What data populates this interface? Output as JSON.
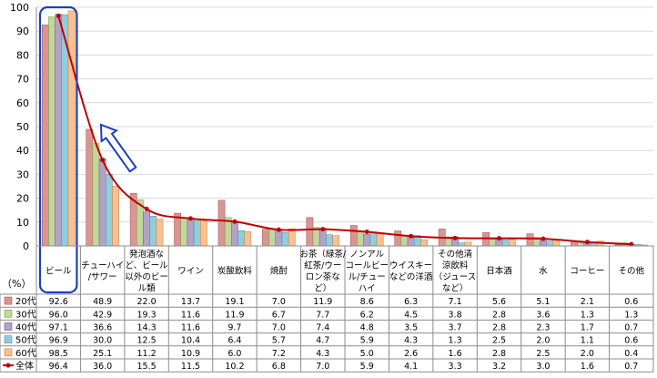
{
  "chart_data": {
    "type": "bar",
    "unit_label": "（%）",
    "ylim": [
      0,
      100
    ],
    "yticks": [
      0,
      10,
      20,
      30,
      40,
      50,
      60,
      70,
      80,
      90,
      100
    ],
    "grid": true,
    "legend_placement": "left-of-table",
    "categories": [
      [
        "ビール"
      ],
      [
        "チューハイ",
        "/サワー"
      ],
      [
        "発泡酒な",
        "ど、ビール",
        "以外のビー",
        "ル類"
      ],
      [
        "ワイン"
      ],
      [
        "炭酸飲料"
      ],
      [
        "焼酎"
      ],
      [
        "お茶（緑茶/",
        "紅茶/ウー",
        "ロン茶な",
        "ど）"
      ],
      [
        "ノンアル",
        "コールビー",
        "ル/チュー",
        "ハイ"
      ],
      [
        "ウイスキー",
        "などの洋酒"
      ],
      [
        "その他清",
        "涼飲料",
        "（ジュース",
        "など）"
      ],
      [
        "日本酒"
      ],
      [
        "水"
      ],
      [
        "コーヒー"
      ],
      [
        "その他"
      ]
    ],
    "series": [
      {
        "name": "20代",
        "color": "#d99594",
        "stroke": "#a05050",
        "values": [
          "92.6",
          "48.9",
          "22.0",
          "13.7",
          "19.1",
          "7.0",
          "11.9",
          "8.6",
          "6.3",
          "7.1",
          "5.6",
          "5.1",
          "2.1",
          "0.6"
        ]
      },
      {
        "name": "30代",
        "color": "#c3d69b",
        "stroke": "#7a9a40",
        "values": [
          "96.0",
          "42.9",
          "19.3",
          "11.6",
          "11.9",
          "6.7",
          "7.7",
          "6.2",
          "4.5",
          "3.8",
          "2.8",
          "3.6",
          "1.3",
          "1.3"
        ]
      },
      {
        "name": "40代",
        "color": "#b3a2c7",
        "stroke": "#6a5a8a",
        "values": [
          "97.1",
          "36.6",
          "14.3",
          "11.6",
          "9.7",
          "7.0",
          "7.4",
          "4.8",
          "3.5",
          "3.7",
          "2.8",
          "2.3",
          "1.7",
          "0.7"
        ]
      },
      {
        "name": "50代",
        "color": "#92cddc",
        "stroke": "#4a90a8",
        "values": [
          "96.9",
          "30.0",
          "12.5",
          "10.4",
          "6.4",
          "5.7",
          "4.7",
          "5.9",
          "4.3",
          "1.3",
          "2.5",
          "2.0",
          "1.1",
          "0.6"
        ]
      },
      {
        "name": "60代",
        "color": "#fac090",
        "stroke": "#c08040",
        "values": [
          "98.5",
          "25.1",
          "11.2",
          "10.9",
          "6.0",
          "7.2",
          "4.3",
          "5.0",
          "2.6",
          "1.6",
          "2.8",
          "2.5",
          "2.0",
          "0.4"
        ]
      }
    ],
    "total_series": {
      "name": "全体",
      "color": "#c00000",
      "values": [
        "96.4",
        "36.0",
        "15.5",
        "11.5",
        "10.2",
        "6.8",
        "7.0",
        "5.9",
        "4.1",
        "3.3",
        "3.2",
        "3.0",
        "1.6",
        "0.7"
      ]
    },
    "highlight": {
      "category_index": 0,
      "color": "#1f3fbf"
    },
    "arrow": {
      "color": "#1f3fbf",
      "direction": "up-left"
    }
  }
}
